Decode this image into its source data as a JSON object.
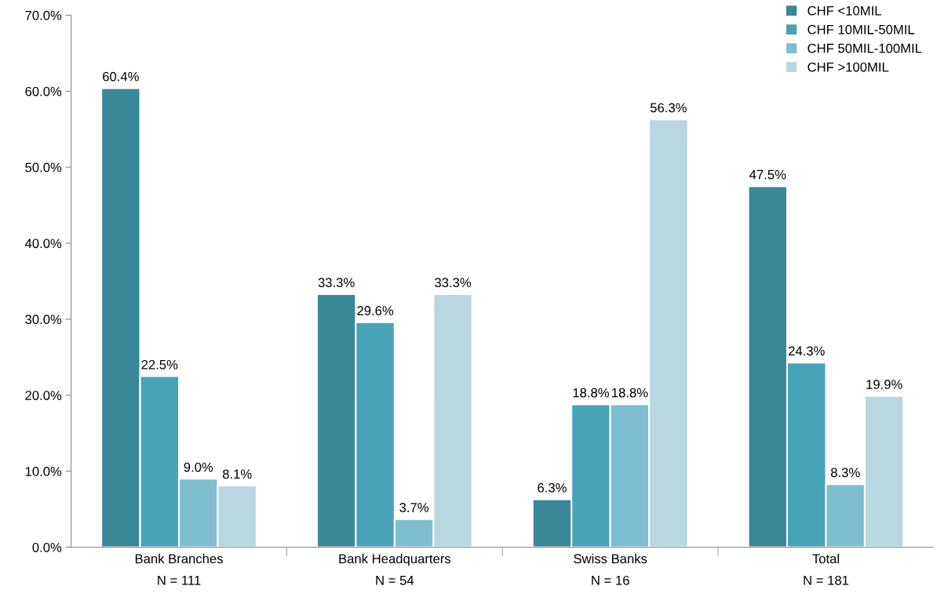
{
  "chart_data": {
    "type": "bar",
    "categories": [
      "Bank Branches\nN = 111",
      "Bank Headquarters\nN = 54",
      "Swiss Banks\nN = 16",
      "Total\nN = 181"
    ],
    "series": [
      {
        "name": "CHF <10MIL",
        "color": "#3a8799",
        "values": [
          60.4,
          33.3,
          6.3,
          47.5
        ],
        "value_labels": [
          "60.4%",
          "33.3%",
          "6.3%",
          "47.5%"
        ]
      },
      {
        "name": "CHF 10MIL-50MIL",
        "color": "#48a3b8",
        "values": [
          22.5,
          29.6,
          18.8,
          24.3
        ],
        "value_labels": [
          "22.5%",
          "29.6%",
          "18.8%",
          "24.3%"
        ]
      },
      {
        "name": "CHF 50MIL-100MIL",
        "color": "#7fbdd1",
        "values": [
          9.0,
          3.7,
          18.8,
          8.3
        ],
        "value_labels": [
          "9.0%",
          "3.7%",
          "18.8%",
          "8.3%"
        ]
      },
      {
        "name": "CHF >100MIL",
        "color": "#b8d7e0",
        "values": [
          8.1,
          33.3,
          56.3,
          19.9
        ],
        "value_labels": [
          "8.1%",
          "33.3%",
          "56.3%",
          "19.9%"
        ]
      }
    ],
    "ylim": [
      0,
      70
    ],
    "yticks": [
      {
        "value": 0,
        "label": "0.0%"
      },
      {
        "value": 10,
        "label": "10.0%"
      },
      {
        "value": 20,
        "label": "20.0%"
      },
      {
        "value": 30,
        "label": "30.0%"
      },
      {
        "value": 40,
        "label": "40.0%"
      },
      {
        "value": 50,
        "label": "50.0%"
      },
      {
        "value": 60,
        "label": "60.0%"
      },
      {
        "value": 70,
        "label": "70.0%"
      }
    ],
    "grid": false,
    "legend": "top right"
  }
}
